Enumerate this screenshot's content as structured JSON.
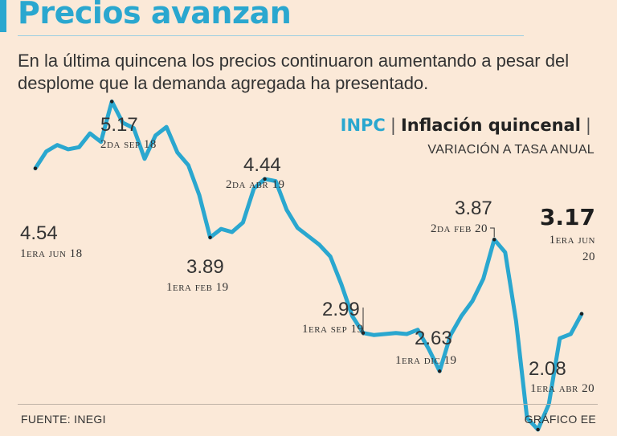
{
  "header": {
    "title": "Precios avanzan",
    "subtitle": "En la última quincena los precios continuaron aumentando a pesar del desplome que la demanda agregada ha presentado."
  },
  "legend": {
    "series_label": "INPC",
    "chart_label": "Inflación quincenal",
    "unit_label": "VARIACIÓN A TASA ANUAL"
  },
  "footer": {
    "source": "FUENTE: INEGI",
    "credit": "GRÁFICO EE"
  },
  "colors": {
    "accent": "#2aa7cf",
    "line": "#2aa7cf",
    "background": "#fbe9d8"
  },
  "chart_data": {
    "type": "line",
    "title": "Inflación quincenal",
    "subtitle": "VARIACIÓN A TASA ANUAL",
    "series_name": "INPC",
    "ylim": [
      1.8,
      5.4
    ],
    "y": [
      4.54,
      4.7,
      4.76,
      4.72,
      4.74,
      4.87,
      4.79,
      5.17,
      4.97,
      4.92,
      4.63,
      4.85,
      4.93,
      4.69,
      4.57,
      4.29,
      3.89,
      3.97,
      3.94,
      4.03,
      4.35,
      4.44,
      4.42,
      4.15,
      3.98,
      3.9,
      3.82,
      3.71,
      3.45,
      3.15,
      2.99,
      2.97,
      2.98,
      2.99,
      2.98,
      3.02,
      2.84,
      2.63,
      2.97,
      3.15,
      3.29,
      3.5,
      3.87,
      3.75,
      3.1,
      2.19,
      2.08,
      2.32,
      2.94,
      2.98,
      3.17
    ],
    "annotations": [
      {
        "index": 0,
        "value": "4.54",
        "date": "1era jun 18"
      },
      {
        "index": 7,
        "value": "5.17",
        "date": "2da sep 18"
      },
      {
        "index": 16,
        "value": "3.89",
        "date": "1era feb 19"
      },
      {
        "index": 21,
        "value": "4.44",
        "date": "2da abr 19"
      },
      {
        "index": 30,
        "value": "2.99",
        "date": "1era sep 19"
      },
      {
        "index": 37,
        "value": "2.63",
        "date": "1era dic 19"
      },
      {
        "index": 42,
        "value": "3.87",
        "date": "2da feb 20"
      },
      {
        "index": 46,
        "value": "2.08",
        "date": "1era abr 20"
      },
      {
        "index": 50,
        "value": "3.17",
        "date_line1": "1era jun",
        "date_line2": "20"
      }
    ]
  }
}
